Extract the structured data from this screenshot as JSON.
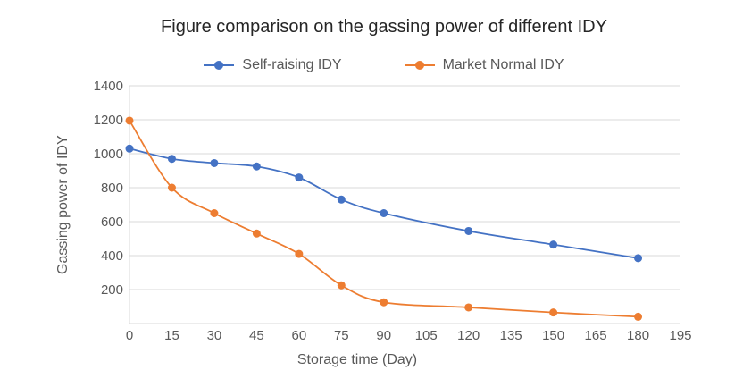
{
  "title": "Figure comparison on the gassing power of different IDY",
  "chart_data": {
    "type": "line",
    "title": "Figure comparison on the gassing power of different IDY",
    "xlabel": "Storage time (Day)",
    "ylabel": "Gassing power of IDY",
    "x": [
      0,
      15,
      30,
      45,
      60,
      75,
      90,
      120,
      150,
      180
    ],
    "series": [
      {
        "name": "Self-raising IDY",
        "color": "#4472C4",
        "values": [
          1030,
          970,
          945,
          925,
          860,
          730,
          650,
          545,
          465,
          385
        ]
      },
      {
        "name": "Market Normal IDY",
        "color": "#ED7D31",
        "values": [
          1195,
          800,
          650,
          530,
          410,
          225,
          125,
          95,
          65,
          40
        ]
      }
    ],
    "x_ticks": [
      0,
      15,
      30,
      45,
      60,
      75,
      90,
      105,
      120,
      135,
      150,
      165,
      180,
      195
    ],
    "y_ticks": [
      200,
      400,
      600,
      800,
      1000,
      1200,
      1400
    ],
    "xlim": [
      0,
      195
    ],
    "ylim": [
      0,
      1400
    ],
    "grid": "horizontal-gridlines",
    "legend_position": "top-center",
    "marker": "circle",
    "line_style": "smooth"
  },
  "styles": {
    "title_color": "#262626",
    "axis_text_color": "#595959",
    "gridline_color": "#D9D9D9",
    "background": "#FFFFFF"
  }
}
